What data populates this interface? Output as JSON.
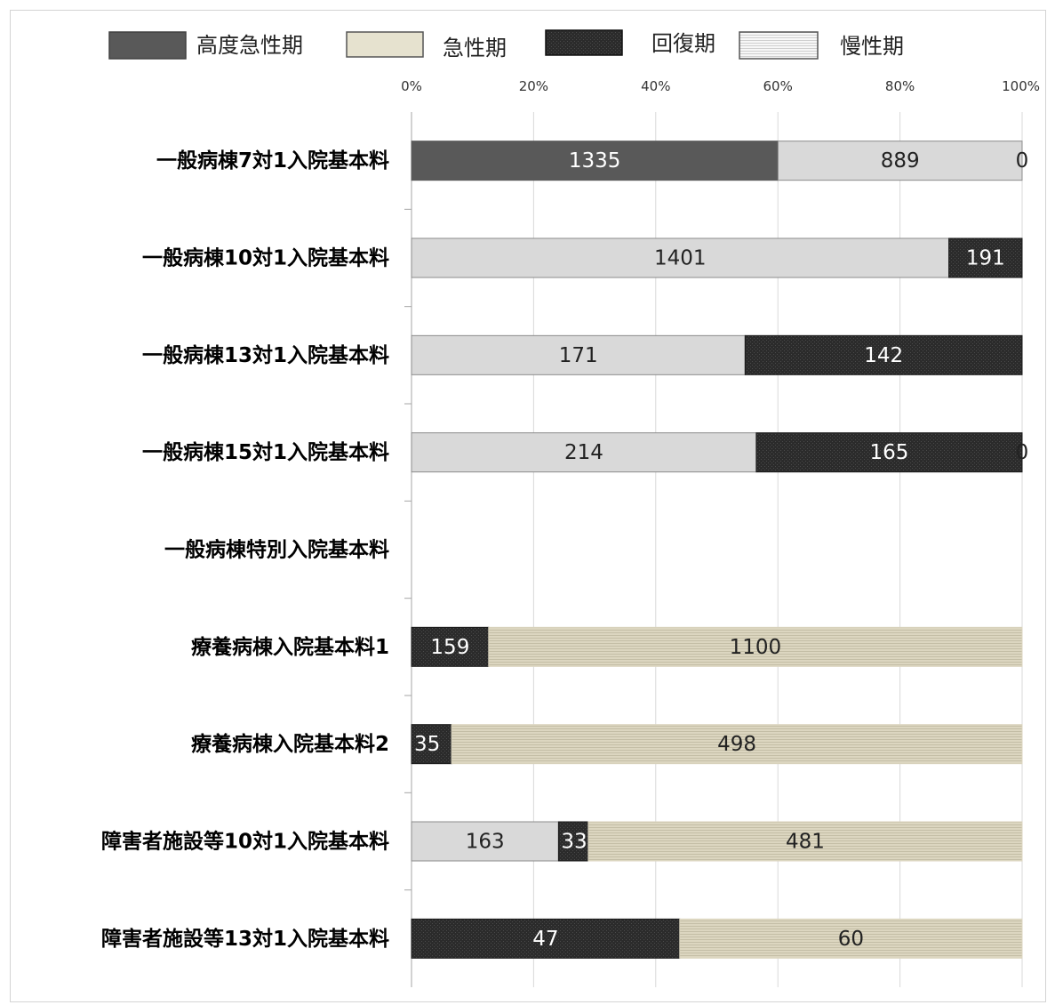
{
  "chart_data": {
    "type": "bar",
    "orientation": "horizontal",
    "stacked": "percent",
    "categories": [
      "一般病棟7対1入院基本料",
      "一般病棟10対1入院基本料",
      "一般病棟13対1入院基本料",
      "一般病棟15対1入院基本料",
      "一般病棟特別入院基本料",
      "療養病棟入院基本料1",
      "療養病棟入院基本料2",
      "障害者施設等10対1入院基本料",
      "障害者施設等13対1入院基本料"
    ],
    "series": [
      {
        "name": "高度急性期",
        "values": [
          1335,
          0,
          0,
          0,
          0,
          0,
          0,
          0,
          0
        ],
        "color": "#595959"
      },
      {
        "name": "急性期",
        "values": [
          889,
          1401,
          171,
          214,
          0,
          0,
          0,
          163,
          0
        ],
        "color": "#d9d9d9"
      },
      {
        "name": "回復期",
        "values": [
          0,
          191,
          142,
          165,
          0,
          159,
          35,
          33,
          47
        ],
        "color": "#262626"
      },
      {
        "name": "慢性期",
        "values": [
          0,
          0,
          0,
          0,
          0,
          1100,
          498,
          481,
          60
        ],
        "color": "#d8d2bc"
      }
    ],
    "data_labels": [
      [
        "1335",
        "889",
        "0",
        null
      ],
      [
        null,
        "1401",
        "191",
        null
      ],
      [
        null,
        "171",
        "142",
        null
      ],
      [
        null,
        "214",
        "165",
        "0"
      ],
      [
        null,
        null,
        null,
        null
      ],
      [
        null,
        null,
        "159",
        "1100"
      ],
      [
        null,
        null,
        "35",
        "498"
      ],
      [
        null,
        "163",
        "33",
        "481"
      ],
      [
        null,
        null,
        "47",
        "60"
      ]
    ],
    "legend_swatches": [
      "#595959",
      "#e6e2cf",
      "#1a1a1a",
      "#f4f4f4"
    ],
    "x_ticks": [
      "0%",
      "20%",
      "40%",
      "60%",
      "80%",
      "100%"
    ],
    "xlim": [
      0,
      100
    ],
    "grid": true,
    "legend_position": "top"
  }
}
